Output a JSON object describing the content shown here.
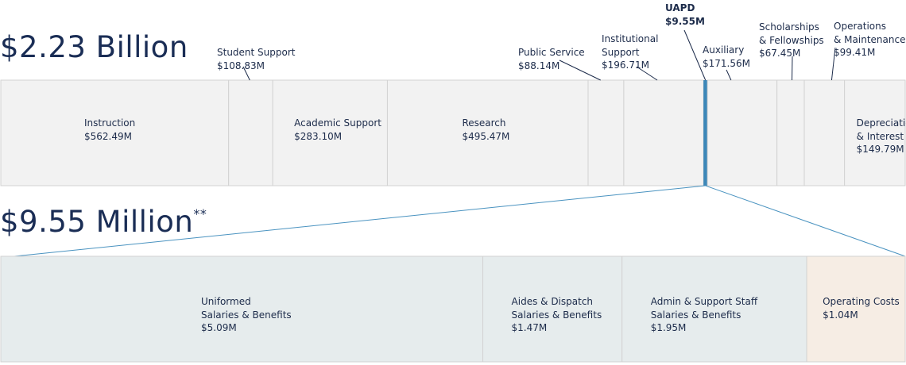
{
  "colors": {
    "segment_fill": "#f2f2f2",
    "segment_stroke": "#d2d2d2",
    "highlight": "#3c87b8",
    "zoom_line": "#4a93c0",
    "uniformed_fill": "#e6eced",
    "operating_fill": "#f6ede4",
    "text": "#1c2b4a"
  },
  "chart_data": [
    {
      "type": "bar",
      "orientation": "horizontal-stacked",
      "title": "$2.23 Billion",
      "total_label": "$2.23 Billion",
      "unit": "$M",
      "categories": [
        "Instruction",
        "Student Support",
        "Academic Support",
        "Research",
        "Public Service",
        "Institutional Support",
        "UAPD",
        "Auxiliary",
        "Scholarships & Fellowships",
        "Operations & Maintenance",
        "Depreciation & Interest"
      ],
      "values": [
        562.49,
        108.83,
        283.1,
        495.47,
        88.14,
        196.71,
        9.55,
        171.56,
        67.45,
        99.41,
        149.79
      ],
      "segments": [
        {
          "key": "instruction",
          "name_lines": [
            "Instruction"
          ],
          "value": 562.49,
          "value_label": "$562.49M",
          "label_position": "inside"
        },
        {
          "key": "student-support",
          "name_lines": [
            "Student Support"
          ],
          "value": 108.83,
          "value_label": "$108.83M",
          "label_position": "above"
        },
        {
          "key": "academic-support",
          "name_lines": [
            "Academic Support"
          ],
          "value": 283.1,
          "value_label": "$283.10M",
          "label_position": "inside"
        },
        {
          "key": "research",
          "name_lines": [
            "Research"
          ],
          "value": 495.47,
          "value_label": "$495.47M",
          "label_position": "inside"
        },
        {
          "key": "public-service",
          "name_lines": [
            "Public Service"
          ],
          "value": 88.14,
          "value_label": "$88.14M",
          "label_position": "above"
        },
        {
          "key": "institutional-support",
          "name_lines": [
            "Institutional",
            "Support"
          ],
          "value": 196.71,
          "value_label": "$196.71M",
          "label_position": "above"
        },
        {
          "key": "uapd",
          "name_lines": [
            "UAPD"
          ],
          "value": 9.55,
          "value_label": "$9.55M",
          "label_position": "above",
          "highlight": true
        },
        {
          "key": "auxiliary",
          "name_lines": [
            "Auxiliary"
          ],
          "value": 171.56,
          "value_label": "$171.56M",
          "label_position": "above"
        },
        {
          "key": "scholarships",
          "name_lines": [
            "Scholarships",
            "& Fellowships"
          ],
          "value": 67.45,
          "value_label": "$67.45M",
          "label_position": "above"
        },
        {
          "key": "operations",
          "name_lines": [
            "Operations",
            "& Maintenance"
          ],
          "value": 99.41,
          "value_label": "$99.41M",
          "label_position": "above"
        },
        {
          "key": "depreciation",
          "name_lines": [
            "Depreciation",
            "& Interest"
          ],
          "value": 149.79,
          "value_label": "$149.79M",
          "label_position": "inside"
        }
      ]
    },
    {
      "type": "bar",
      "orientation": "horizontal-stacked",
      "title": "$9.55 Million",
      "total_label": "$9.55 Million",
      "footnote_mark": "**",
      "unit": "$M",
      "categories": [
        "Uniformed Salaries & Benefits",
        "Aides & Dispatch Salaries & Benefits",
        "Admin & Support Staff Salaries & Benefits",
        "Operating Costs"
      ],
      "values": [
        5.09,
        1.47,
        1.95,
        1.04
      ],
      "segments": [
        {
          "key": "uniformed",
          "name_lines": [
            "Uniformed",
            "Salaries & Benefits"
          ],
          "value": 5.09,
          "value_label": "$5.09M",
          "fill": "#e6eced"
        },
        {
          "key": "aides",
          "name_lines": [
            "Aides & Dispatch",
            "Salaries & Benefits"
          ],
          "value": 1.47,
          "value_label": "$1.47M",
          "fill": "#e6eced"
        },
        {
          "key": "admin",
          "name_lines": [
            "Admin & Support Staff",
            "Salaries & Benefits"
          ],
          "value": 1.95,
          "value_label": "$1.95M",
          "fill": "#e6eced"
        },
        {
          "key": "operating",
          "name_lines": [
            "Operating Costs"
          ],
          "value": 1.04,
          "value_label": "$1.04M",
          "fill": "#f6ede4"
        }
      ]
    }
  ]
}
